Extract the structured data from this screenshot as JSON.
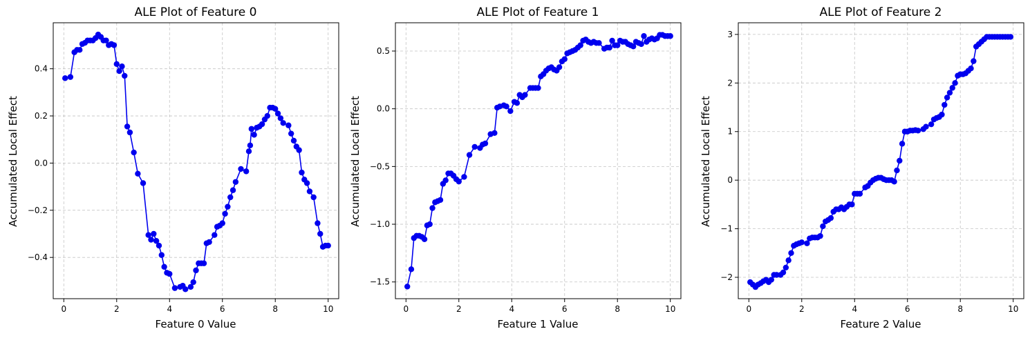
{
  "chart_data": [
    {
      "type": "line",
      "title": "ALE Plot of Feature 0",
      "xlabel": "Feature 0 Value",
      "ylabel": "Accumulated Local Effect",
      "xlim": [
        -0.4,
        10.4
      ],
      "ylim": [
        -0.575,
        0.595
      ],
      "xticks": [
        0,
        2,
        4,
        6,
        8,
        10
      ],
      "yticks": [
        -0.4,
        -0.2,
        0.0,
        0.2,
        0.4
      ],
      "ytick_labels": [
        "−0.4",
        "−0.2",
        "0.0",
        "0.2",
        "0.4"
      ],
      "grid": true,
      "marker": "circle",
      "color": "#0000ee",
      "series": [
        {
          "x": [
            0.05,
            0.25,
            0.4,
            0.5,
            0.6,
            0.7,
            0.8,
            0.9,
            1.0,
            1.1,
            1.2,
            1.3,
            1.4,
            1.5,
            1.6,
            1.7,
            1.8,
            1.9,
            2.0,
            2.1,
            2.2,
            2.3,
            2.4,
            2.5,
            2.65,
            2.8,
            3.0,
            3.2,
            3.3,
            3.4,
            3.5,
            3.6,
            3.7,
            3.8,
            3.9,
            4.0,
            4.2,
            4.4,
            4.5,
            4.6,
            4.8,
            4.9,
            5.0,
            5.1,
            5.2,
            5.3,
            5.4,
            5.5,
            5.7,
            5.8,
            5.9,
            6.0,
            6.1,
            6.2,
            6.3,
            6.4,
            6.5,
            6.7,
            6.9,
            7.0,
            7.05,
            7.1,
            7.2,
            7.3,
            7.4,
            7.5,
            7.6,
            7.7,
            7.8,
            7.9,
            8.0,
            8.1,
            8.2,
            8.3,
            8.5,
            8.6,
            8.7,
            8.8,
            8.9,
            9.0,
            9.1,
            9.2,
            9.3,
            9.45,
            9.6,
            9.7,
            9.8,
            9.9,
            10.0
          ],
          "values": [
            0.36,
            0.365,
            0.47,
            0.48,
            0.48,
            0.505,
            0.51,
            0.52,
            0.52,
            0.52,
            0.53,
            0.545,
            0.535,
            0.52,
            0.52,
            0.5,
            0.505,
            0.5,
            0.42,
            0.39,
            0.41,
            0.37,
            0.155,
            0.13,
            0.045,
            -0.045,
            -0.085,
            -0.305,
            -0.325,
            -0.3,
            -0.33,
            -0.35,
            -0.39,
            -0.44,
            -0.465,
            -0.47,
            -0.53,
            -0.525,
            -0.52,
            -0.535,
            -0.525,
            -0.505,
            -0.455,
            -0.425,
            -0.425,
            -0.425,
            -0.34,
            -0.335,
            -0.305,
            -0.27,
            -0.265,
            -0.255,
            -0.215,
            -0.185,
            -0.145,
            -0.115,
            -0.08,
            -0.025,
            -0.035,
            0.05,
            0.075,
            0.145,
            0.12,
            0.15,
            0.155,
            0.165,
            0.185,
            0.2,
            0.235,
            0.235,
            0.23,
            0.21,
            0.19,
            0.17,
            0.16,
            0.125,
            0.095,
            0.07,
            0.055,
            -0.04,
            -0.07,
            -0.085,
            -0.12,
            -0.145,
            -0.255,
            -0.3,
            -0.355,
            -0.35,
            -0.35
          ]
        }
      ]
    },
    {
      "type": "line",
      "title": "ALE Plot of Feature 1",
      "xlabel": "Feature 1 Value",
      "ylabel": "Accumulated Local Effect",
      "xlim": [
        -0.4,
        10.4
      ],
      "ylim": [
        -1.645,
        0.745
      ],
      "xticks": [
        0,
        2,
        4,
        6,
        8,
        10
      ],
      "yticks": [
        -1.5,
        -1.0,
        -0.5,
        0.0,
        0.5
      ],
      "ytick_labels": [
        "−1.5",
        "−1.0",
        "−0.5",
        "0.0",
        "0.5"
      ],
      "grid": true,
      "marker": "circle",
      "color": "#0000ee",
      "series": [
        {
          "x": [
            0.05,
            0.2,
            0.3,
            0.4,
            0.5,
            0.6,
            0.7,
            0.8,
            0.9,
            1.0,
            1.1,
            1.2,
            1.3,
            1.4,
            1.5,
            1.6,
            1.7,
            1.8,
            1.9,
            2.0,
            2.2,
            2.4,
            2.6,
            2.8,
            2.9,
            3.0,
            3.2,
            3.35,
            3.45,
            3.55,
            3.7,
            3.8,
            3.95,
            4.1,
            4.2,
            4.3,
            4.4,
            4.5,
            4.7,
            4.8,
            4.9,
            5.0,
            5.1,
            5.2,
            5.3,
            5.4,
            5.5,
            5.6,
            5.7,
            5.8,
            5.9,
            6.0,
            6.1,
            6.2,
            6.3,
            6.4,
            6.5,
            6.6,
            6.7,
            6.8,
            6.9,
            7.0,
            7.1,
            7.2,
            7.3,
            7.5,
            7.6,
            7.7,
            7.8,
            7.9,
            8.0,
            8.1,
            8.2,
            8.3,
            8.4,
            8.5,
            8.6,
            8.7,
            8.8,
            8.9,
            9.0,
            9.1,
            9.2,
            9.3,
            9.4,
            9.5,
            9.6,
            9.7,
            9.8,
            9.9,
            10.0
          ],
          "values": [
            -1.54,
            -1.39,
            -1.12,
            -1.1,
            -1.1,
            -1.11,
            -1.13,
            -1.01,
            -1.0,
            -0.86,
            -0.81,
            -0.8,
            -0.79,
            -0.65,
            -0.62,
            -0.56,
            -0.56,
            -0.58,
            -0.61,
            -0.63,
            -0.59,
            -0.4,
            -0.33,
            -0.34,
            -0.31,
            -0.3,
            -0.22,
            -0.21,
            0.01,
            0.02,
            0.03,
            0.02,
            -0.02,
            0.06,
            0.05,
            0.12,
            0.1,
            0.12,
            0.18,
            0.18,
            0.18,
            0.18,
            0.28,
            0.3,
            0.33,
            0.35,
            0.36,
            0.34,
            0.33,
            0.36,
            0.41,
            0.43,
            0.48,
            0.49,
            0.5,
            0.51,
            0.53,
            0.55,
            0.59,
            0.6,
            0.58,
            0.57,
            0.58,
            0.57,
            0.57,
            0.52,
            0.53,
            0.53,
            0.59,
            0.55,
            0.55,
            0.59,
            0.58,
            0.58,
            0.56,
            0.55,
            0.54,
            0.58,
            0.57,
            0.56,
            0.63,
            0.58,
            0.6,
            0.61,
            0.6,
            0.61,
            0.64,
            0.64,
            0.63,
            0.63,
            0.63
          ]
        }
      ]
    },
    {
      "type": "line",
      "title": "ALE Plot of Feature 2",
      "xlabel": "Feature 2 Value",
      "ylabel": "Accumulated Local Effect",
      "xlim": [
        -0.4,
        10.4
      ],
      "ylim": [
        -2.44,
        3.24
      ],
      "xticks": [
        0,
        2,
        4,
        6,
        8,
        10
      ],
      "yticks": [
        -2,
        -1,
        0,
        1,
        2,
        3
      ],
      "ytick_labels": [
        "−2",
        "−1",
        "0",
        "1",
        "2",
        "3"
      ],
      "grid": true,
      "marker": "circle",
      "color": "#0000ee",
      "series": [
        {
          "x": [
            0.05,
            0.15,
            0.25,
            0.35,
            0.45,
            0.55,
            0.65,
            0.75,
            0.85,
            0.95,
            1.05,
            1.2,
            1.3,
            1.4,
            1.5,
            1.6,
            1.7,
            1.8,
            1.9,
            2.0,
            2.2,
            2.3,
            2.4,
            2.5,
            2.6,
            2.7,
            2.8,
            2.9,
            3.0,
            3.1,
            3.2,
            3.3,
            3.4,
            3.5,
            3.6,
            3.7,
            3.8,
            3.9,
            4.0,
            4.1,
            4.2,
            4.4,
            4.5,
            4.6,
            4.7,
            4.8,
            4.9,
            5.0,
            5.1,
            5.2,
            5.3,
            5.4,
            5.5,
            5.6,
            5.7,
            5.8,
            5.9,
            6.0,
            6.1,
            6.2,
            6.3,
            6.4,
            6.6,
            6.7,
            6.9,
            7.0,
            7.1,
            7.2,
            7.3,
            7.4,
            7.5,
            7.6,
            7.7,
            7.8,
            7.9,
            8.0,
            8.1,
            8.2,
            8.3,
            8.4,
            8.5,
            8.6,
            8.7,
            8.8,
            8.9,
            9.0,
            9.1,
            9.2,
            9.3,
            9.4,
            9.5,
            9.6,
            9.7,
            9.8,
            9.9
          ],
          "values": [
            -2.1,
            -2.15,
            -2.2,
            -2.15,
            -2.12,
            -2.08,
            -2.05,
            -2.1,
            -2.05,
            -1.95,
            -1.95,
            -1.95,
            -1.9,
            -1.8,
            -1.65,
            -1.5,
            -1.35,
            -1.32,
            -1.3,
            -1.28,
            -1.3,
            -1.2,
            -1.18,
            -1.18,
            -1.18,
            -1.15,
            -0.95,
            -0.85,
            -0.82,
            -0.78,
            -0.65,
            -0.6,
            -0.6,
            -0.56,
            -0.6,
            -0.55,
            -0.5,
            -0.5,
            -0.28,
            -0.28,
            -0.28,
            -0.15,
            -0.12,
            -0.05,
            0.0,
            0.03,
            0.05,
            0.05,
            0.02,
            0.0,
            0.0,
            0.0,
            -0.03,
            0.2,
            0.4,
            0.75,
            1.0,
            1.0,
            1.02,
            1.02,
            1.03,
            1.02,
            1.05,
            1.1,
            1.15,
            1.25,
            1.28,
            1.3,
            1.35,
            1.55,
            1.7,
            1.8,
            1.9,
            2.0,
            2.15,
            2.18,
            2.18,
            2.2,
            2.25,
            2.3,
            2.45,
            2.75,
            2.8,
            2.85,
            2.9,
            2.95,
            2.95,
            2.95,
            2.95,
            2.95,
            2.95,
            2.95,
            2.95,
            2.95,
            2.95
          ]
        }
      ]
    }
  ]
}
